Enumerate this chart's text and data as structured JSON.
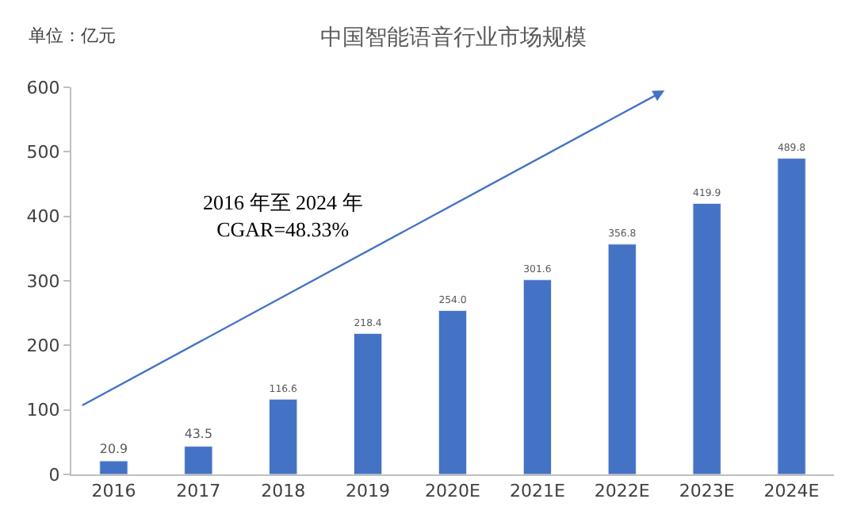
{
  "chart_data": {
    "type": "bar",
    "title": "中国智能语音行业市场规模",
    "ylabel": "单位：亿元",
    "categories": [
      "2016",
      "2017",
      "2018",
      "2019",
      "2020E",
      "2021E",
      "2022E",
      "2023E",
      "2024E"
    ],
    "values": [
      20.9,
      43.5,
      116.6,
      218.4,
      254.0,
      301.6,
      356.8,
      419.9,
      489.8
    ],
    "value_labels": [
      "20.9",
      "43.5",
      "116.6",
      "218.4",
      "254.0",
      "301.6",
      "356.8",
      "419.9",
      "489.8"
    ],
    "color": "#4472c4",
    "ylim": [
      0,
      600
    ],
    "yticks": [
      0,
      100,
      200,
      300,
      400,
      500,
      600
    ],
    "annotations": [
      "2016 年至 2024 年\nCGAR=48.33%"
    ]
  }
}
